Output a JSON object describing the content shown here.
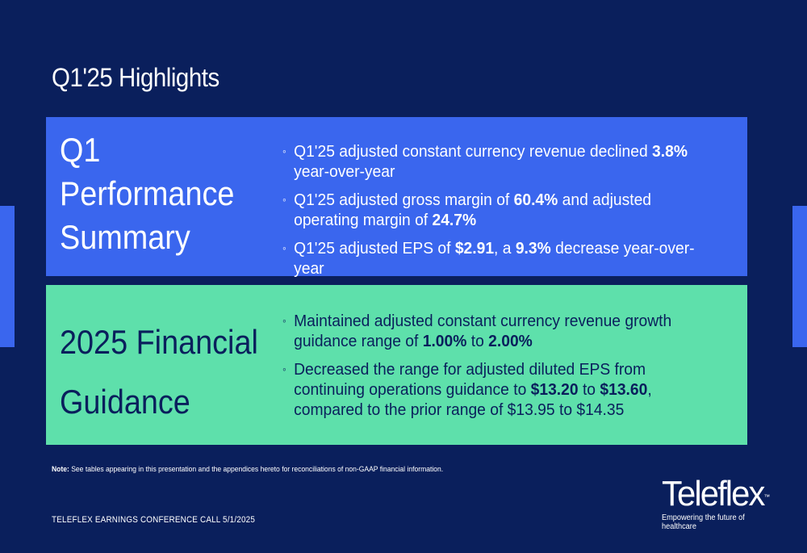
{
  "page": {
    "title": "Q1'25 Highlights"
  },
  "performance": {
    "heading_lines": [
      "Q1",
      "Performance",
      "Summary"
    ],
    "bullets": [
      {
        "parts": [
          {
            "t": "Q1'25 adjusted constant currency revenue declined "
          },
          {
            "t": "3.8%",
            "b": true
          },
          {
            "t": " year-over-year"
          }
        ]
      },
      {
        "parts": [
          {
            "t": "Q1'25 adjusted gross margin of "
          },
          {
            "t": "60.4%",
            "b": true
          },
          {
            "t": " and adjusted operating margin of "
          },
          {
            "t": "24.7%",
            "b": true
          }
        ]
      },
      {
        "parts": [
          {
            "t": "Q1'25 adjusted EPS of "
          },
          {
            "t": "$2.91",
            "b": true
          },
          {
            "t": ", a "
          },
          {
            "t": "9.3%",
            "b": true
          },
          {
            "t": " decrease year-over-year"
          }
        ]
      }
    ]
  },
  "guidance": {
    "heading_lines": [
      "2025 Financial",
      "Guidance"
    ],
    "bullets": [
      {
        "parts": [
          {
            "t": "Maintained adjusted constant currency revenue growth guidance range of "
          },
          {
            "t": "1.00%",
            "b": true
          },
          {
            "t": " to "
          },
          {
            "t": "2.00%",
            "b": true
          }
        ]
      },
      {
        "parts": [
          {
            "t": "Decreased the range for adjusted diluted EPS from continuing operations guidance to "
          },
          {
            "t": "$13.20",
            "b": true
          },
          {
            "t": " to "
          },
          {
            "t": "$13.60",
            "b": true
          },
          {
            "t": ", compared to the prior range of $13.95 to $14.35"
          }
        ]
      }
    ]
  },
  "note": {
    "label": "Note:",
    "text": " See tables appearing in this presentation and the appendices hereto for reconciliations of non-GAAP financial information."
  },
  "footer": {
    "text": "TELEFLEX EARNINGS CONFERENCE CALL 5/1/2025"
  },
  "logo": {
    "word": "Teleflex",
    "tm": "™",
    "tagline": "Empowering the future of healthcare"
  },
  "colors": {
    "background": "#0a1f5c",
    "blue_panel": "#3a66ee",
    "green_panel": "#5ee0ab"
  }
}
